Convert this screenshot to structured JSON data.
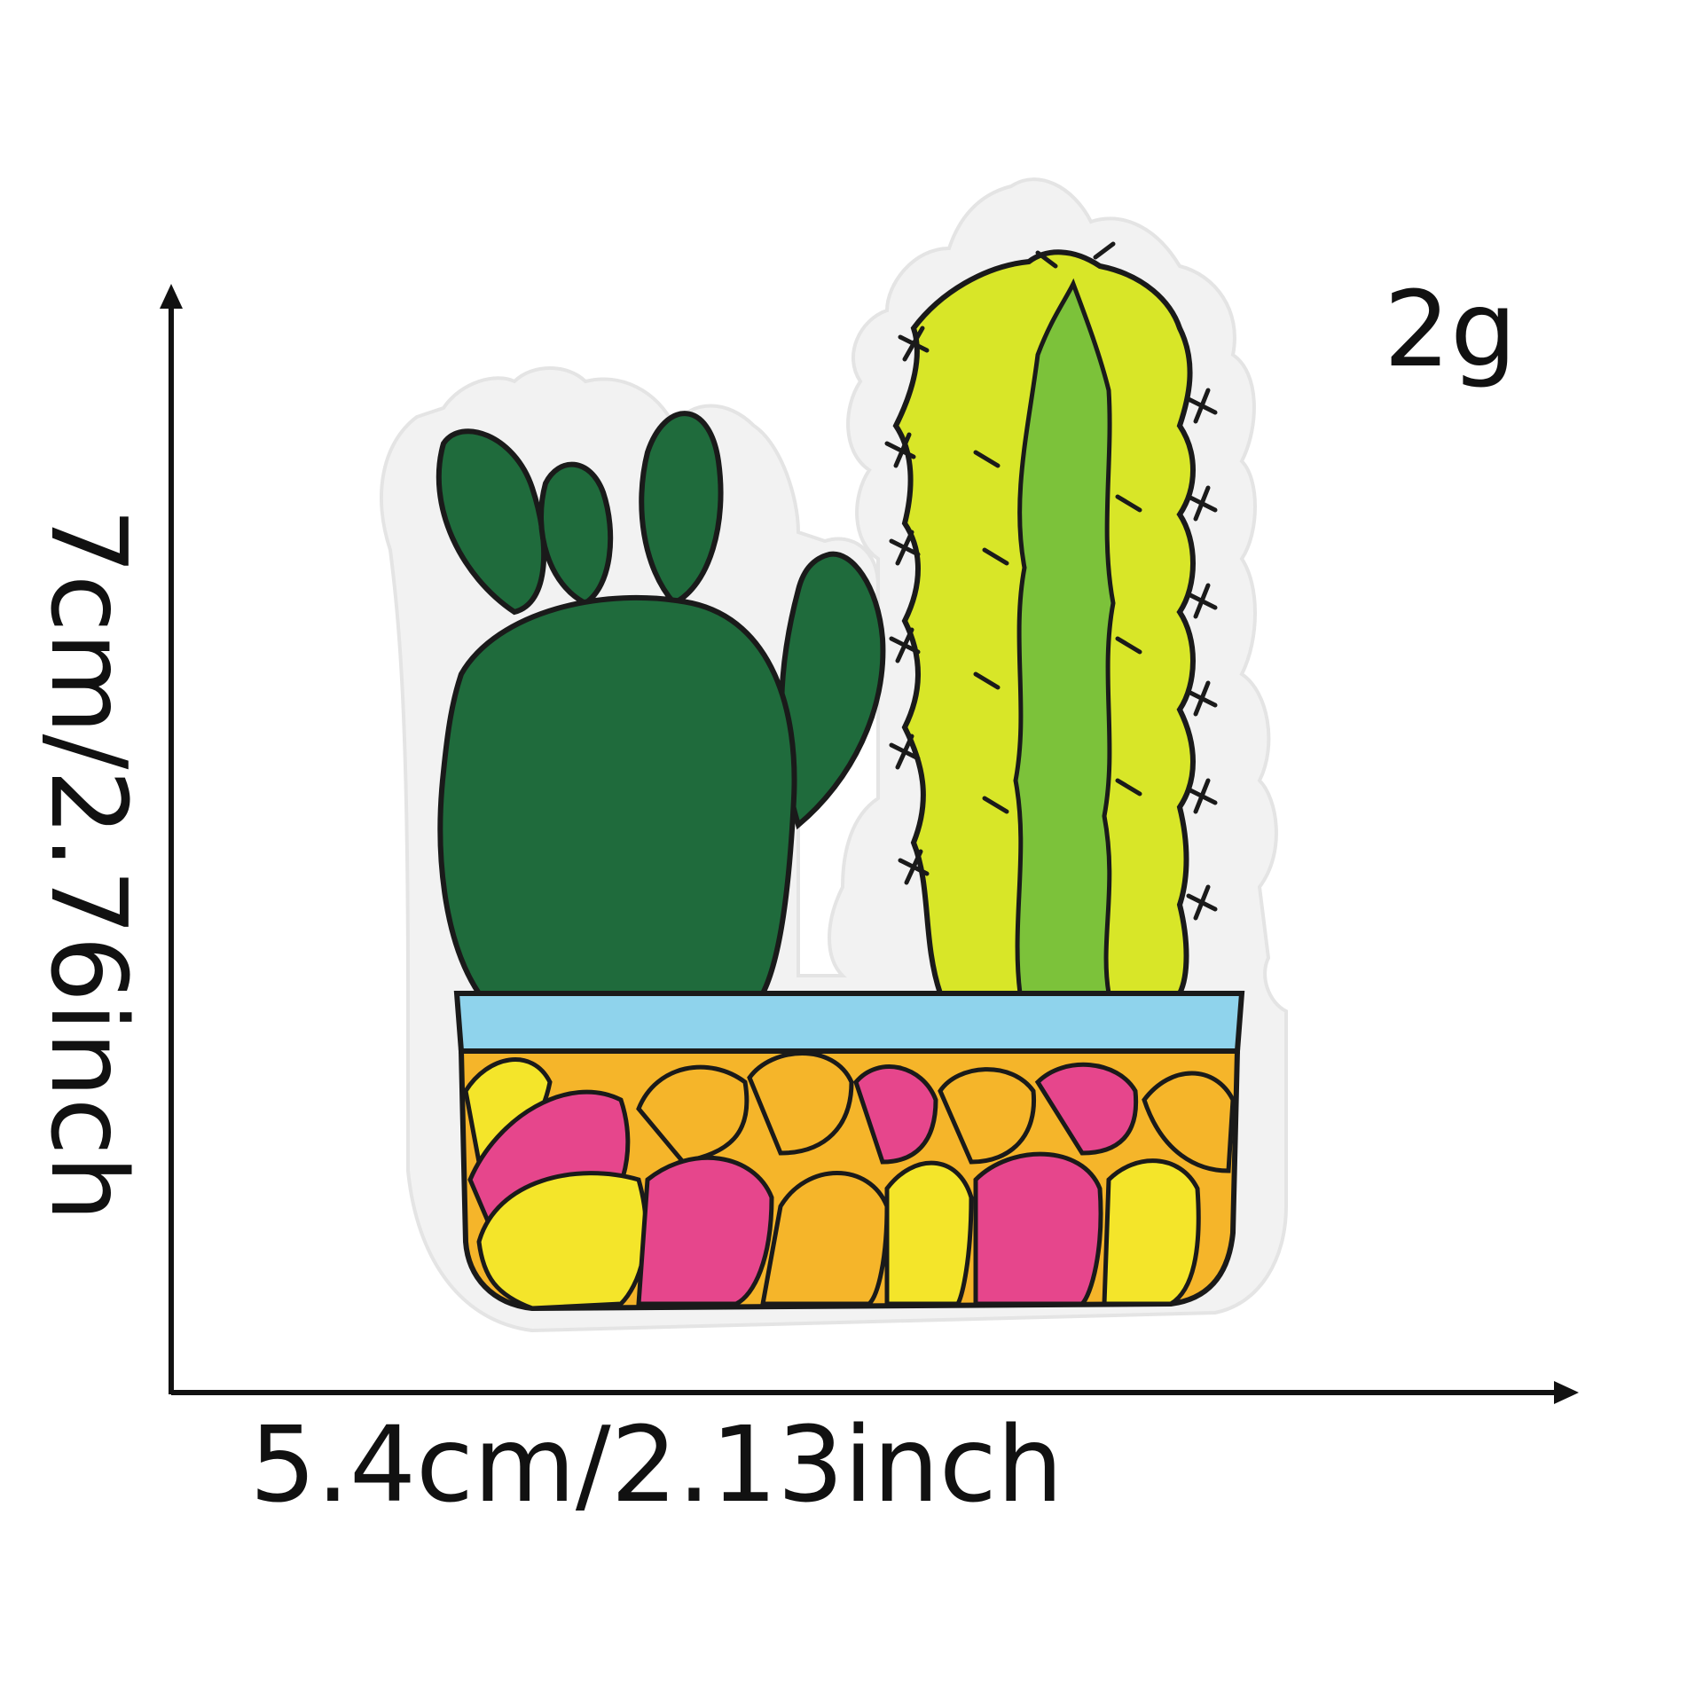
{
  "labels": {
    "weight": "2g",
    "height": "7cm/2.76inch",
    "width": "5.4cm/2.13inch"
  },
  "product": {
    "name_icon": "cactus-patch-icon"
  },
  "colors": {
    "felt_backing": "#f2f2f2",
    "outline": "#1a1a1a",
    "dark_green": "#1f6b3c",
    "lime": "#d8e628",
    "mid_green": "#7cc23a",
    "pot_rim": "#8fd3ec",
    "pink": "#e6468c",
    "yellow": "#f4e52a",
    "orange": "#f5b52a"
  }
}
